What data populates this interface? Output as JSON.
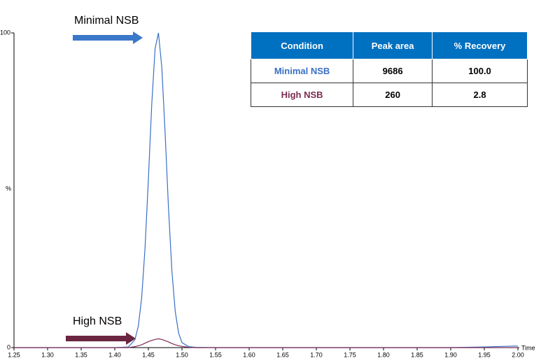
{
  "chart_data": {
    "type": "line",
    "x_label": "Time",
    "y_label": "%",
    "x": [
      1.25,
      1.3,
      1.35,
      1.4,
      1.42,
      1.43,
      1.435,
      1.44,
      1.445,
      1.45,
      1.455,
      1.46,
      1.465,
      1.47,
      1.475,
      1.48,
      1.485,
      1.49,
      1.495,
      1.5,
      1.51,
      1.52,
      1.55,
      1.6,
      1.7,
      1.8,
      1.9,
      1.95,
      1.98,
      2.0
    ],
    "series": [
      {
        "name": "Minimal NSB",
        "color": "#3a6fc4",
        "values": [
          0,
          0,
          0,
          0,
          0.2,
          2.5,
          6.8,
          15.8,
          31.5,
          53.4,
          77.2,
          95,
          100,
          89,
          67.9,
          44.1,
          24.4,
          11.5,
          4.6,
          1.6,
          0.3,
          0.1,
          0,
          0,
          0,
          0,
          0,
          0.2,
          0.4,
          0.5
        ]
      },
      {
        "name": "High NSB",
        "color": "#7b2c52",
        "values": [
          0,
          0,
          0,
          0,
          0,
          0.3,
          0.6,
          0.9,
          1.4,
          1.9,
          2.3,
          2.6,
          2.8,
          2.6,
          2.2,
          1.8,
          1.3,
          0.9,
          0.6,
          0.4,
          0.1,
          0,
          0,
          0,
          0,
          0,
          0,
          0,
          0,
          0
        ]
      }
    ],
    "xlim": [
      1.25,
      2.0
    ],
    "xticks": [
      1.25,
      {
        "value": 1.3,
        "label": "1.30"
      },
      1.35,
      {
        "value": 1.4,
        "label": "1.40"
      },
      1.45,
      {
        "value": 1.5,
        "label": "1.50"
      },
      1.55,
      {
        "value": 1.6,
        "label": "1.60"
      },
      1.65,
      {
        "value": 1.7,
        "label": "1.70"
      },
      1.75,
      {
        "value": 1.8,
        "label": "1.80"
      },
      1.85,
      {
        "value": 1.9,
        "label": "1.90"
      },
      1.95,
      {
        "value": 2,
        "label": "2.00"
      }
    ],
    "ylim": [
      0,
      100
    ],
    "yticks": [
      0,
      100
    ],
    "table": {
      "columns": [
        "Condition",
        "Peak area",
        "% Recovery"
      ],
      "rows": [
        [
          "Minimal NSB",
          "9686",
          "100.0"
        ],
        [
          "High NSB",
          "260",
          "2.8"
        ]
      ]
    }
  }
}
